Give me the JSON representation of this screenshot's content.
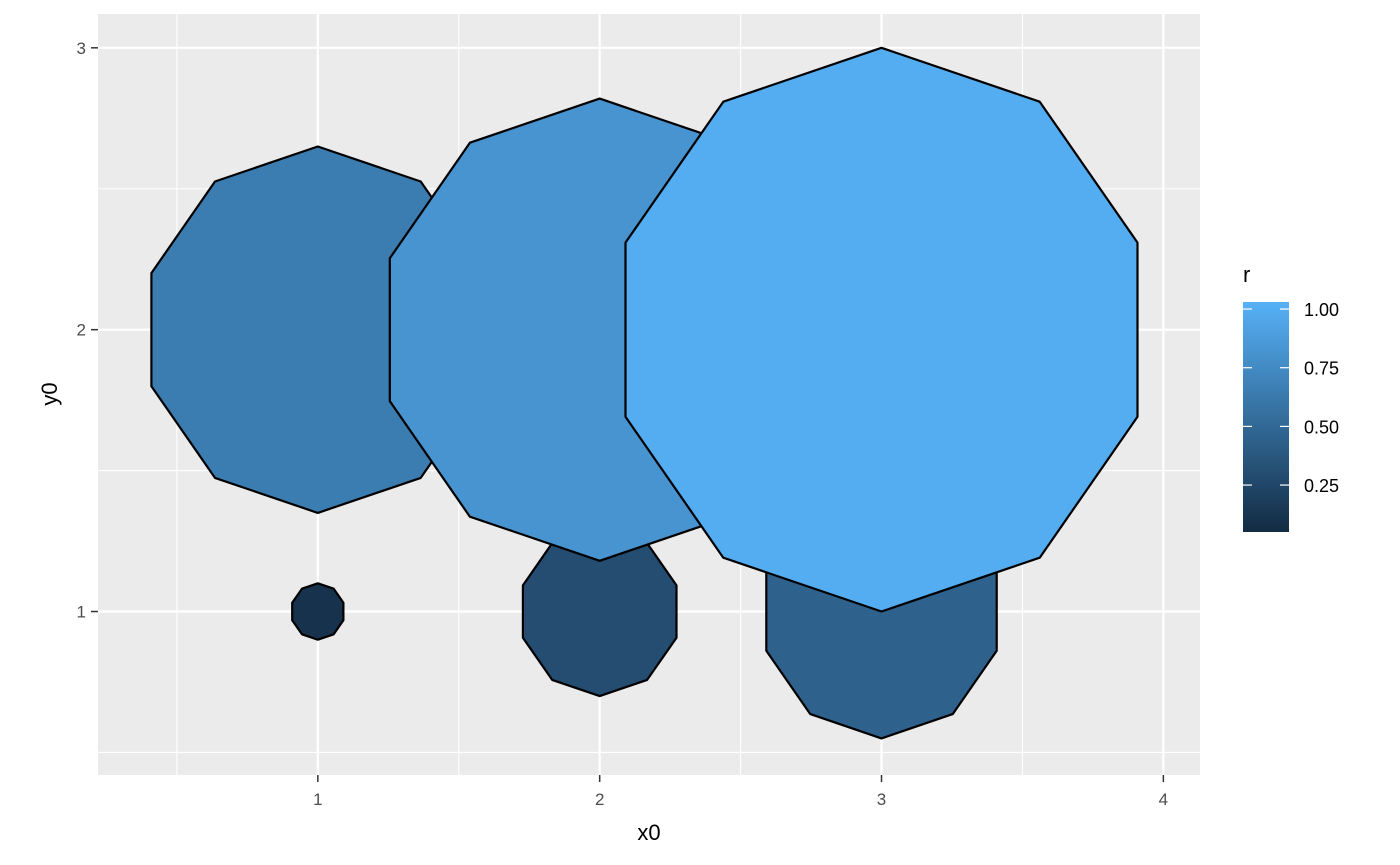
{
  "chart_data": {
    "type": "scatter",
    "geometry": "regular decagons centered at (x0, y0) with radius r, filled by r",
    "xlabel": "x0",
    "ylabel": "y0",
    "xlim": [
      0.22,
      4.13
    ],
    "ylim": [
      0.42,
      3.12
    ],
    "x_ticks": [
      1,
      2,
      3,
      4
    ],
    "y_ticks": [
      1,
      2,
      3
    ],
    "x_tick_labels": [
      "1",
      "2",
      "3",
      "4"
    ],
    "y_tick_labels": [
      "1",
      "2",
      "3"
    ],
    "grid": true,
    "points": [
      {
        "x0": 1,
        "y0": 1,
        "r": 0.1
      },
      {
        "x0": 2,
        "y0": 1,
        "r": 0.3
      },
      {
        "x0": 3,
        "y0": 1,
        "r": 0.45
      },
      {
        "x0": 1,
        "y0": 2,
        "r": 0.65
      },
      {
        "x0": 2,
        "y0": 2,
        "r": 0.82
      },
      {
        "x0": 3,
        "y0": 2,
        "r": 1.0
      }
    ],
    "legend": {
      "title": "r",
      "position": "right",
      "breaks": [
        0.25,
        0.5,
        0.75,
        1.0
      ],
      "labels": [
        "0.25",
        "0.50",
        "0.75",
        "1.00"
      ],
      "range": [
        0.05,
        1.03
      ],
      "color_low": "#132B43",
      "color_high": "#56B1F7"
    },
    "colors": {
      "panel_background": "#EBEBEB",
      "grid": "#FFFFFF",
      "outline": "#000000"
    }
  }
}
